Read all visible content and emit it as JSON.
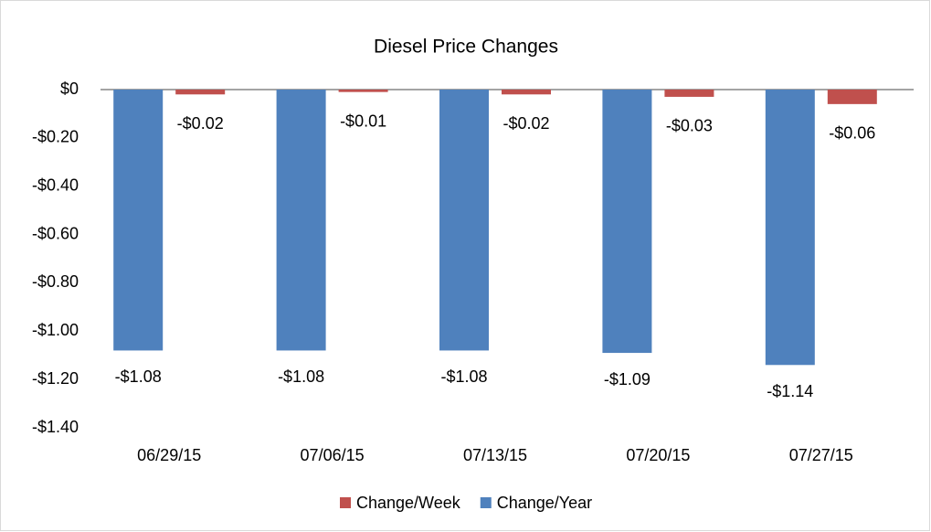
{
  "chart_data": {
    "type": "bar",
    "title": "Diesel Price Changes",
    "categories": [
      "06/29/15",
      "07/06/15",
      "07/13/15",
      "07/20/15",
      "07/27/15"
    ],
    "series": [
      {
        "name": "Change/Year",
        "color": "#4f81bd",
        "values": [
          -1.08,
          -1.08,
          -1.08,
          -1.09,
          -1.14
        ],
        "value_labels": [
          "-$1.08",
          "-$1.08",
          "-$1.08",
          "-$1.09",
          "-$1.14"
        ]
      },
      {
        "name": "Change/Week",
        "color": "#c0504d",
        "values": [
          -0.02,
          -0.01,
          -0.02,
          -0.03,
          -0.06
        ],
        "value_labels": [
          "-$0.02",
          "-$0.01",
          "-$0.02",
          "-$0.03",
          "-$0.06"
        ]
      }
    ],
    "ylim": [
      -1.4,
      0
    ],
    "yticks": [
      {
        "value": 0,
        "label": "$0"
      },
      {
        "value": -0.2,
        "label": "-$0.20"
      },
      {
        "value": -0.4,
        "label": "-$0.40"
      },
      {
        "value": -0.6,
        "label": "-$0.60"
      },
      {
        "value": -0.8,
        "label": "-$0.80"
      },
      {
        "value": -1.0,
        "label": "-$1.00"
      },
      {
        "value": -1.2,
        "label": "-$1.20"
      },
      {
        "value": -1.4,
        "label": "-$1.40"
      }
    ],
    "grid": false,
    "legend": "bottom"
  }
}
